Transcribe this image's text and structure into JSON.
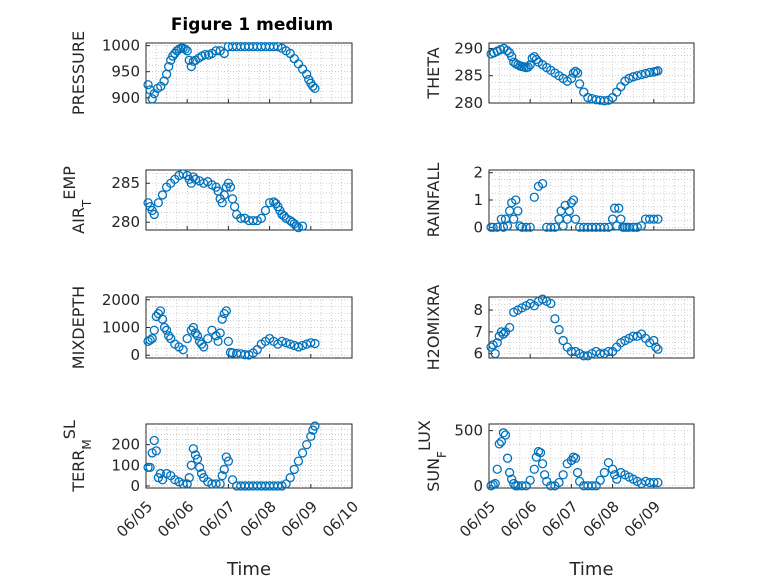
{
  "figure": {
    "title": "Figure 1 medium",
    "marker_color": "#0072BD"
  },
  "chart_data": [
    {
      "type": "scatter",
      "ylabel": "PRESSURE",
      "xlabel": "",
      "title": "Figure 1 medium",
      "xlim": [
        0,
        4.5
      ],
      "ylim": [
        890,
        1005
      ],
      "yticks": [
        900,
        950,
        1000
      ],
      "ytick_labels": [
        "900",
        "950",
        "1000"
      ],
      "xticks": [
        0,
        1,
        2,
        3,
        4,
        5
      ],
      "xtick_labels": [],
      "grid": true,
      "x": [
        0.05,
        0.1,
        0.15,
        0.2,
        0.28,
        0.36,
        0.44,
        0.5,
        0.55,
        0.6,
        0.65,
        0.7,
        0.75,
        0.8,
        0.85,
        0.9,
        0.95,
        1.0,
        1.05,
        1.1,
        1.15,
        1.2,
        1.28,
        1.36,
        1.44,
        1.52,
        1.6,
        1.7,
        1.8,
        1.9,
        2.0,
        2.1,
        2.2,
        2.3,
        2.4,
        2.5,
        2.6,
        2.7,
        2.8,
        2.9,
        3.0,
        3.1,
        3.2,
        3.3,
        3.4,
        3.5,
        3.6,
        3.7,
        3.8,
        3.9,
        3.95,
        4.0,
        4.05,
        4.1
      ],
      "y": [
        925,
        915,
        898,
        908,
        918,
        922,
        932,
        945,
        960,
        972,
        980,
        985,
        990,
        993,
        995,
        995,
        993,
        990,
        972,
        960,
        970,
        972,
        976,
        980,
        983,
        982,
        985,
        990,
        990,
        985,
        998,
        998,
        998,
        998,
        998,
        998,
        998,
        998,
        998,
        998,
        998,
        998,
        998,
        995,
        990,
        985,
        975,
        965,
        955,
        945,
        935,
        928,
        922,
        918
      ]
    },
    {
      "type": "scatter",
      "ylabel": "THETA",
      "xlabel": "",
      "xlim": [
        0,
        4.5
      ],
      "ylim": [
        280,
        291
      ],
      "yticks": [
        280,
        285,
        290
      ],
      "ytick_labels": [
        "280",
        "285",
        "290"
      ],
      "xticks": [
        0,
        1,
        2,
        3,
        4,
        5
      ],
      "xtick_labels": [],
      "grid": true,
      "x": [
        0.05,
        0.12,
        0.2,
        0.28,
        0.36,
        0.44,
        0.5,
        0.55,
        0.6,
        0.65,
        0.7,
        0.75,
        0.8,
        0.85,
        0.9,
        0.95,
        1.0,
        1.05,
        1.1,
        1.15,
        1.2,
        1.3,
        1.4,
        1.5,
        1.6,
        1.7,
        1.8,
        1.9,
        2.0,
        2.05,
        2.1,
        2.15,
        2.2,
        2.3,
        2.4,
        2.5,
        2.6,
        2.7,
        2.8,
        2.9,
        3.0,
        3.1,
        3.2,
        3.3,
        3.4,
        3.5,
        3.6,
        3.7,
        3.8,
        3.9,
        4.0,
        4.05,
        4.1
      ],
      "y": [
        289,
        289.2,
        289.5,
        289.8,
        290,
        289.6,
        289.2,
        288.5,
        287.5,
        287.2,
        287,
        286.8,
        286.7,
        286.6,
        286.5,
        286.6,
        287,
        288.2,
        288.5,
        288,
        287.5,
        287,
        286.5,
        286,
        285.5,
        285,
        284.5,
        284,
        284.5,
        285.5,
        285.8,
        285.5,
        283.5,
        282,
        281,
        280.8,
        280.6,
        280.5,
        280.4,
        280.5,
        281,
        282,
        283,
        284,
        284.5,
        284.8,
        285,
        285.2,
        285.4,
        285.6,
        285.7,
        285.8,
        285.9
      ]
    },
    {
      "type": "scatter",
      "ylabel": "AIR_TEMP",
      "ylabel_main": "AIR",
      "ylabel_sub": "T",
      "ylabel_tail": "EMP",
      "xlabel": "",
      "xlim": [
        0,
        4.5
      ],
      "ylim": [
        279,
        286.7
      ],
      "yticks": [
        280,
        285
      ],
      "ytick_labels": [
        "280",
        "285"
      ],
      "xticks": [
        0,
        1,
        2,
        3,
        4,
        5
      ],
      "xtick_labels": [],
      "grid": true,
      "x": [
        0.05,
        0.1,
        0.15,
        0.2,
        0.3,
        0.4,
        0.5,
        0.6,
        0.7,
        0.8,
        0.9,
        1.0,
        1.05,
        1.1,
        1.15,
        1.2,
        1.3,
        1.4,
        1.5,
        1.6,
        1.7,
        1.75,
        1.8,
        1.85,
        1.9,
        1.95,
        2.0,
        2.05,
        2.1,
        2.15,
        2.2,
        2.3,
        2.4,
        2.5,
        2.6,
        2.7,
        2.8,
        2.9,
        3.0,
        3.1,
        3.15,
        3.2,
        3.25,
        3.3,
        3.35,
        3.4,
        3.5,
        3.55,
        3.6,
        3.65,
        3.7,
        3.8
      ],
      "y": [
        282.5,
        282,
        281.5,
        281,
        282.5,
        283.5,
        284.5,
        285,
        285.5,
        286,
        286.2,
        286,
        285.5,
        285,
        285.8,
        285.5,
        285.3,
        285,
        285.2,
        284.8,
        284.5,
        284,
        283,
        282.5,
        283.5,
        284.5,
        285,
        284.5,
        283,
        282,
        281,
        280.5,
        280.5,
        280.2,
        280.2,
        280.2,
        280.5,
        281.5,
        282.5,
        282.6,
        282.4,
        282,
        281.5,
        281,
        280.8,
        280.5,
        280.2,
        280,
        279.8,
        279.5,
        279.3,
        279.5
      ]
    },
    {
      "type": "scatter",
      "ylabel": "RAINFALL",
      "xlabel": "",
      "xlim": [
        0,
        4.5
      ],
      "ylim": [
        -0.1,
        2.1
      ],
      "yticks": [
        0,
        1,
        2
      ],
      "ytick_labels": [
        "0",
        "1",
        "2"
      ],
      "xticks": [
        0,
        1,
        2,
        3,
        4,
        5
      ],
      "xtick_labels": [],
      "grid": true,
      "x": [
        0.05,
        0.1,
        0.2,
        0.3,
        0.35,
        0.4,
        0.45,
        0.5,
        0.55,
        0.6,
        0.65,
        0.7,
        0.75,
        0.8,
        0.9,
        1.0,
        1.1,
        1.2,
        1.3,
        1.4,
        1.5,
        1.6,
        1.7,
        1.75,
        1.8,
        1.85,
        1.9,
        1.95,
        2.0,
        2.05,
        2.1,
        2.2,
        2.3,
        2.4,
        2.5,
        2.6,
        2.7,
        2.8,
        2.9,
        3.0,
        3.05,
        3.1,
        3.15,
        3.2,
        3.25,
        3.3,
        3.35,
        3.4,
        3.5,
        3.6,
        3.7,
        3.8,
        3.9,
        4.0,
        4.1
      ],
      "y": [
        0,
        0,
        0,
        0.3,
        0,
        0.3,
        0.05,
        0.6,
        0.9,
        0.3,
        1.0,
        0.6,
        0.05,
        0,
        0,
        0,
        1.1,
        1.5,
        1.6,
        0,
        0,
        0,
        0.3,
        0.6,
        0.05,
        0.8,
        0.3,
        0.6,
        0.9,
        1.0,
        0.3,
        0,
        0,
        0,
        0,
        0,
        0,
        0,
        0,
        0.3,
        0.7,
        0.05,
        0.7,
        0.3,
        0,
        0,
        0,
        0,
        0,
        0,
        0.05,
        0.3,
        0.3,
        0.3,
        0.3
      ]
    },
    {
      "type": "scatter",
      "ylabel": "MIXDEPTH",
      "xlabel": "",
      "xlim": [
        0,
        4.5
      ],
      "ylim": [
        -100,
        2100
      ],
      "yticks": [
        0,
        1000,
        2000
      ],
      "ytick_labels": [
        "0",
        "1000",
        "2000"
      ],
      "xticks": [
        0,
        1,
        2,
        3,
        4,
        5
      ],
      "xtick_labels": [],
      "grid": true,
      "x": [
        0.05,
        0.1,
        0.15,
        0.2,
        0.25,
        0.3,
        0.35,
        0.4,
        0.45,
        0.5,
        0.55,
        0.6,
        0.7,
        0.8,
        0.9,
        1.0,
        1.1,
        1.15,
        1.2,
        1.25,
        1.3,
        1.35,
        1.4,
        1.5,
        1.6,
        1.7,
        1.75,
        1.8,
        1.85,
        1.9,
        1.95,
        2.0,
        2.05,
        2.1,
        2.2,
        2.3,
        2.4,
        2.5,
        2.6,
        2.7,
        2.8,
        2.9,
        3.0,
        3.1,
        3.2,
        3.3,
        3.4,
        3.5,
        3.6,
        3.7,
        3.8,
        3.9,
        4.0,
        4.1
      ],
      "y": [
        500,
        550,
        600,
        900,
        1400,
        1500,
        1600,
        1300,
        1000,
        900,
        700,
        600,
        400,
        300,
        200,
        600,
        900,
        1000,
        800,
        700,
        500,
        400,
        300,
        600,
        900,
        700,
        500,
        800,
        1300,
        1500,
        1600,
        500,
        100,
        80,
        60,
        50,
        20,
        10,
        80,
        200,
        400,
        500,
        600,
        500,
        400,
        500,
        450,
        400,
        350,
        300,
        350,
        400,
        450,
        420
      ]
    },
    {
      "type": "scatter",
      "ylabel": "H2OMIXRA",
      "xlabel": "",
      "xlim": [
        0,
        4.5
      ],
      "ylim": [
        5.8,
        8.6
      ],
      "yticks": [
        6,
        7,
        8
      ],
      "ytick_labels": [
        "6",
        "7",
        "8"
      ],
      "xticks": [
        0,
        1,
        2,
        3,
        4,
        5
      ],
      "xtick_labels": [],
      "grid": true,
      "x": [
        0.05,
        0.1,
        0.15,
        0.2,
        0.25,
        0.3,
        0.35,
        0.4,
        0.5,
        0.6,
        0.7,
        0.8,
        0.9,
        1.0,
        1.1,
        1.2,
        1.3,
        1.4,
        1.5,
        1.6,
        1.7,
        1.8,
        1.9,
        2.0,
        2.1,
        2.2,
        2.3,
        2.4,
        2.5,
        2.6,
        2.7,
        2.8,
        2.9,
        3.0,
        3.1,
        3.2,
        3.3,
        3.4,
        3.5,
        3.6,
        3.7,
        3.8,
        3.9,
        4.0,
        4.05,
        4.1
      ],
      "y": [
        6.3,
        6.4,
        6.0,
        6.5,
        6.8,
        7.0,
        6.9,
        7.0,
        7.2,
        7.9,
        8.0,
        8.1,
        8.2,
        8.3,
        8.2,
        8.4,
        8.5,
        8.4,
        8.3,
        7.6,
        7.1,
        6.6,
        6.3,
        6.1,
        6.1,
        6.0,
        5.9,
        5.9,
        6.0,
        6.1,
        6.0,
        6.0,
        6.1,
        6.1,
        6.3,
        6.5,
        6.6,
        6.7,
        6.8,
        6.8,
        6.9,
        6.7,
        6.5,
        6.6,
        6.3,
        6.2
      ]
    },
    {
      "type": "scatter",
      "ylabel": "TERR_MSL",
      "ylabel_main": "TERR",
      "ylabel_sub": "M",
      "ylabel_tail": "SL",
      "xlabel": "Time",
      "xlim": [
        0,
        5
      ],
      "ylim": [
        -10,
        300
      ],
      "yticks": [
        0,
        100,
        200
      ],
      "ytick_labels": [
        "0",
        "100",
        "200"
      ],
      "xticks": [
        0,
        1,
        2,
        3,
        4,
        5
      ],
      "xtick_labels": [
        "06/05",
        "06/06",
        "06/07",
        "06/08",
        "06/09",
        "06/10"
      ],
      "grid": true,
      "x": [
        0.05,
        0.1,
        0.15,
        0.2,
        0.25,
        0.3,
        0.35,
        0.4,
        0.5,
        0.6,
        0.7,
        0.8,
        0.9,
        1.0,
        1.05,
        1.1,
        1.15,
        1.2,
        1.25,
        1.3,
        1.35,
        1.4,
        1.5,
        1.6,
        1.7,
        1.8,
        1.85,
        1.9,
        1.95,
        2.0,
        2.1,
        2.2,
        2.3,
        2.4,
        2.5,
        2.6,
        2.7,
        2.8,
        2.9,
        3.0,
        3.1,
        3.2,
        3.3,
        3.4,
        3.5,
        3.6,
        3.7,
        3.8,
        3.9,
        4.0,
        4.05,
        4.1
      ],
      "y": [
        90,
        90,
        160,
        220,
        170,
        40,
        60,
        30,
        60,
        50,
        30,
        20,
        10,
        10,
        40,
        100,
        180,
        150,
        130,
        90,
        60,
        40,
        20,
        10,
        10,
        10,
        50,
        80,
        140,
        120,
        30,
        0,
        0,
        0,
        0,
        0,
        0,
        0,
        0,
        0,
        0,
        0,
        0,
        10,
        40,
        80,
        120,
        160,
        200,
        240,
        270,
        290
      ]
    },
    {
      "type": "scatter",
      "ylabel": "SUN_FLUX",
      "ylabel_main": "SUN",
      "ylabel_sub": "F",
      "ylabel_tail": "LUX",
      "xlabel": "Time",
      "xlim": [
        0,
        5
      ],
      "ylim": [
        -20,
        560
      ],
      "yticks": [
        0,
        500
      ],
      "ytick_labels": [
        "0",
        "500"
      ],
      "xticks": [
        0,
        1,
        2,
        3,
        4,
        5
      ],
      "xtick_labels": [
        "06/05",
        "06/06",
        "06/07",
        "06/08",
        "06/09",
        "06/10"
      ],
      "grid": true,
      "x": [
        0.05,
        0.1,
        0.15,
        0.2,
        0.25,
        0.3,
        0.35,
        0.4,
        0.45,
        0.5,
        0.55,
        0.6,
        0.65,
        0.7,
        0.8,
        0.9,
        1.0,
        1.1,
        1.15,
        1.2,
        1.25,
        1.3,
        1.35,
        1.4,
        1.5,
        1.6,
        1.7,
        1.8,
        1.9,
        2.0,
        2.05,
        2.1,
        2.15,
        2.2,
        2.3,
        2.4,
        2.5,
        2.6,
        2.7,
        2.8,
        2.9,
        3.0,
        3.05,
        3.1,
        3.2,
        3.3,
        3.4,
        3.5,
        3.6,
        3.7,
        3.8,
        3.9,
        4.0,
        4.1
      ],
      "y": [
        0,
        10,
        20,
        150,
        380,
        400,
        480,
        460,
        250,
        120,
        60,
        20,
        0,
        0,
        0,
        0,
        50,
        150,
        260,
        310,
        300,
        200,
        100,
        40,
        0,
        0,
        30,
        100,
        200,
        230,
        260,
        250,
        120,
        40,
        0,
        0,
        0,
        0,
        50,
        120,
        210,
        150,
        100,
        60,
        120,
        100,
        80,
        60,
        40,
        20,
        40,
        30,
        30,
        30
      ]
    }
  ]
}
